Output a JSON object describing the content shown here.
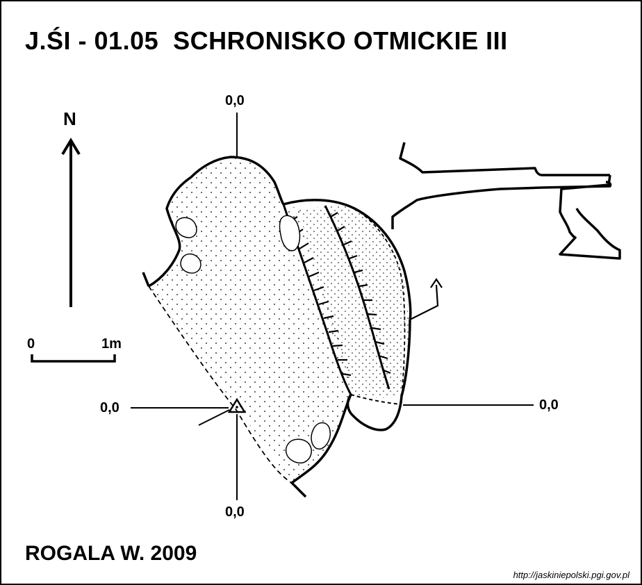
{
  "title": "J.ŚI - 01.05  SCHRONISKO OTMICKIE III",
  "author": "ROGALA W. 2009",
  "source_url": "http://jaskiniepolski.pgi.gov.pl",
  "north_label": "N",
  "scale": {
    "start": "0",
    "end": "1m"
  },
  "profile_labels": {
    "top": "0,0",
    "bottom": "0,0",
    "left": "0,0",
    "right": "0,0"
  }
}
